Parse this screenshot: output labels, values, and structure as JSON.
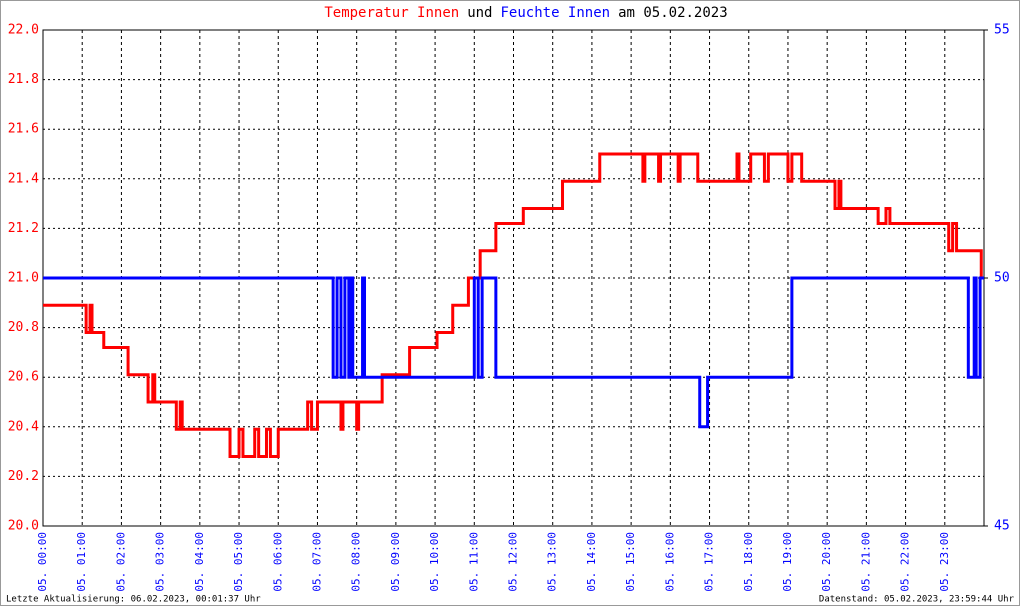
{
  "chart_data": {
    "type": "line",
    "title": [
      "Temperatur Innen",
      "und",
      "Feuchte Innen",
      "am 05.02.2023"
    ],
    "footer_left": "Letzte Aktualisierung: 06.02.2023, 00:01:37 Uhr",
    "footer_right": "Datenstand: 05.02.2023, 23:59:44 Uhr",
    "xlim": [
      0,
      24
    ],
    "xticks": [
      {
        "value": 0,
        "label": "05. 00:00"
      },
      {
        "value": 1,
        "label": "05. 01:00"
      },
      {
        "value": 2,
        "label": "05. 02:00"
      },
      {
        "value": 3,
        "label": "05. 03:00"
      },
      {
        "value": 4,
        "label": "05. 04:00"
      },
      {
        "value": 5,
        "label": "05. 05:00"
      },
      {
        "value": 6,
        "label": "05. 06:00"
      },
      {
        "value": 7,
        "label": "05. 07:00"
      },
      {
        "value": 8,
        "label": "05. 08:00"
      },
      {
        "value": 9,
        "label": "05. 09:00"
      },
      {
        "value": 10,
        "label": "05. 10:00"
      },
      {
        "value": 11,
        "label": "05. 11:00"
      },
      {
        "value": 12,
        "label": "05. 12:00"
      },
      {
        "value": 13,
        "label": "05. 13:00"
      },
      {
        "value": 14,
        "label": "05. 14:00"
      },
      {
        "value": 15,
        "label": "05. 15:00"
      },
      {
        "value": 16,
        "label": "05. 16:00"
      },
      {
        "value": 17,
        "label": "05. 17:00"
      },
      {
        "value": 18,
        "label": "05. 18:00"
      },
      {
        "value": 19,
        "label": "05. 19:00"
      },
      {
        "value": 20,
        "label": "05. 20:00"
      },
      {
        "value": 21,
        "label": "05. 21:00"
      },
      {
        "value": 22,
        "label": "05. 22:00"
      },
      {
        "value": 23,
        "label": "05. 23:00"
      }
    ],
    "ylim": [
      20.0,
      22.0
    ],
    "yticks": [
      {
        "value": 20,
        "label": "20.0"
      },
      20.2,
      20.4,
      20.6,
      20.8,
      {
        "value": 21,
        "label": "21.0"
      },
      21.2,
      21.4,
      21.6,
      21.8,
      {
        "value": 22,
        "label": "22.0"
      }
    ],
    "y2lim": [
      45,
      55
    ],
    "y2ticks": [
      45,
      50,
      55
    ],
    "grid": true,
    "series": [
      {
        "name": "Temperatur Innen",
        "color": "#ff0000",
        "x": [
          0,
          1.1,
          1.1,
          1.2,
          1.2,
          1.25,
          1.25,
          1.55,
          1.55,
          2.17,
          2.17,
          2.68,
          2.68,
          2.8,
          2.8,
          2.85,
          2.85,
          3.4,
          3.4,
          3.5,
          3.5,
          3.55,
          3.55,
          4.77,
          4.77,
          5.0,
          5.0,
          5.1,
          5.1,
          5.4,
          5.4,
          5.5,
          5.5,
          5.7,
          5.7,
          5.8,
          5.8,
          6.0,
          6.0,
          6.75,
          6.75,
          6.85,
          6.85,
          7.0,
          7.0,
          7.6,
          7.6,
          7.65,
          7.65,
          8.0,
          8.0,
          8.05,
          8.05,
          8.65,
          8.65,
          9.35,
          9.35,
          10.05,
          10.05,
          10.45,
          10.45,
          10.85,
          10.85,
          11.15,
          11.15,
          11.55,
          11.55,
          12.25,
          12.25,
          13.25,
          13.25,
          14.2,
          14.2,
          15.3,
          15.3,
          15.35,
          15.35,
          15.7,
          15.7,
          15.75,
          15.75,
          16.2,
          16.2,
          16.25,
          16.25,
          16.7,
          16.7,
          17.7,
          17.7,
          17.75,
          17.75,
          18.05,
          18.05,
          18.4,
          18.4,
          18.5,
          18.5,
          19.0,
          19.0,
          19.1,
          19.1,
          19.35,
          19.35,
          20.2,
          20.2,
          20.3,
          20.3,
          20.35,
          20.35,
          21.3,
          21.3,
          21.5,
          21.5,
          21.6,
          21.6,
          23.1,
          23.1,
          23.2,
          23.2,
          23.3,
          23.3,
          23.93,
          23.93,
          24
        ],
        "values": [
          20.89,
          20.89,
          20.78,
          20.78,
          20.89,
          20.89,
          20.78,
          20.78,
          20.72,
          20.72,
          20.61,
          20.61,
          20.5,
          20.5,
          20.61,
          20.61,
          20.5,
          20.5,
          20.39,
          20.39,
          20.5,
          20.5,
          20.39,
          20.39,
          20.28,
          20.28,
          20.39,
          20.39,
          20.28,
          20.28,
          20.39,
          20.39,
          20.28,
          20.28,
          20.39,
          20.39,
          20.28,
          20.28,
          20.39,
          20.39,
          20.5,
          20.5,
          20.39,
          20.39,
          20.5,
          20.5,
          20.39,
          20.39,
          20.5,
          20.5,
          20.39,
          20.39,
          20.5,
          20.5,
          20.61,
          20.61,
          20.72,
          20.72,
          20.78,
          20.78,
          20.89,
          20.89,
          21.0,
          21.0,
          21.11,
          21.11,
          21.22,
          21.22,
          21.28,
          21.28,
          21.39,
          21.39,
          21.5,
          21.5,
          21.39,
          21.39,
          21.5,
          21.5,
          21.39,
          21.39,
          21.5,
          21.5,
          21.39,
          21.39,
          21.5,
          21.5,
          21.39,
          21.39,
          21.5,
          21.5,
          21.39,
          21.39,
          21.5,
          21.5,
          21.39,
          21.39,
          21.5,
          21.5,
          21.39,
          21.39,
          21.5,
          21.5,
          21.39,
          21.39,
          21.28,
          21.28,
          21.39,
          21.39,
          21.28,
          21.28,
          21.22,
          21.22,
          21.28,
          21.28,
          21.22,
          21.22,
          21.11,
          21.11,
          21.22,
          21.22,
          21.11,
          21.11,
          21.0,
          21.0
        ]
      },
      {
        "name": "Feuchte Innen",
        "color": "#0000ff",
        "axis": "y2",
        "x": [
          0,
          7.4,
          7.4,
          7.5,
          7.5,
          7.6,
          7.6,
          7.7,
          7.7,
          7.8,
          7.8,
          7.85,
          7.85,
          7.9,
          7.9,
          8.15,
          8.15,
          8.2,
          8.2,
          11.0,
          11.0,
          11.1,
          11.1,
          11.2,
          11.2,
          11.55,
          11.55,
          16.75,
          16.75,
          16.95,
          16.95,
          19.1,
          19.1,
          23.6,
          23.6,
          23.75,
          23.75,
          23.8,
          23.8,
          23.9,
          23.9,
          24
        ],
        "values": [
          50,
          50,
          48,
          48,
          50,
          50,
          48,
          48,
          50,
          50,
          48,
          48,
          50,
          50,
          48,
          48,
          50,
          50,
          48,
          48,
          50,
          50,
          48,
          48,
          50,
          50,
          48,
          48,
          47,
          47,
          48,
          48,
          50,
          50,
          48,
          48,
          50,
          50,
          48,
          48,
          50,
          50
        ]
      }
    ]
  }
}
